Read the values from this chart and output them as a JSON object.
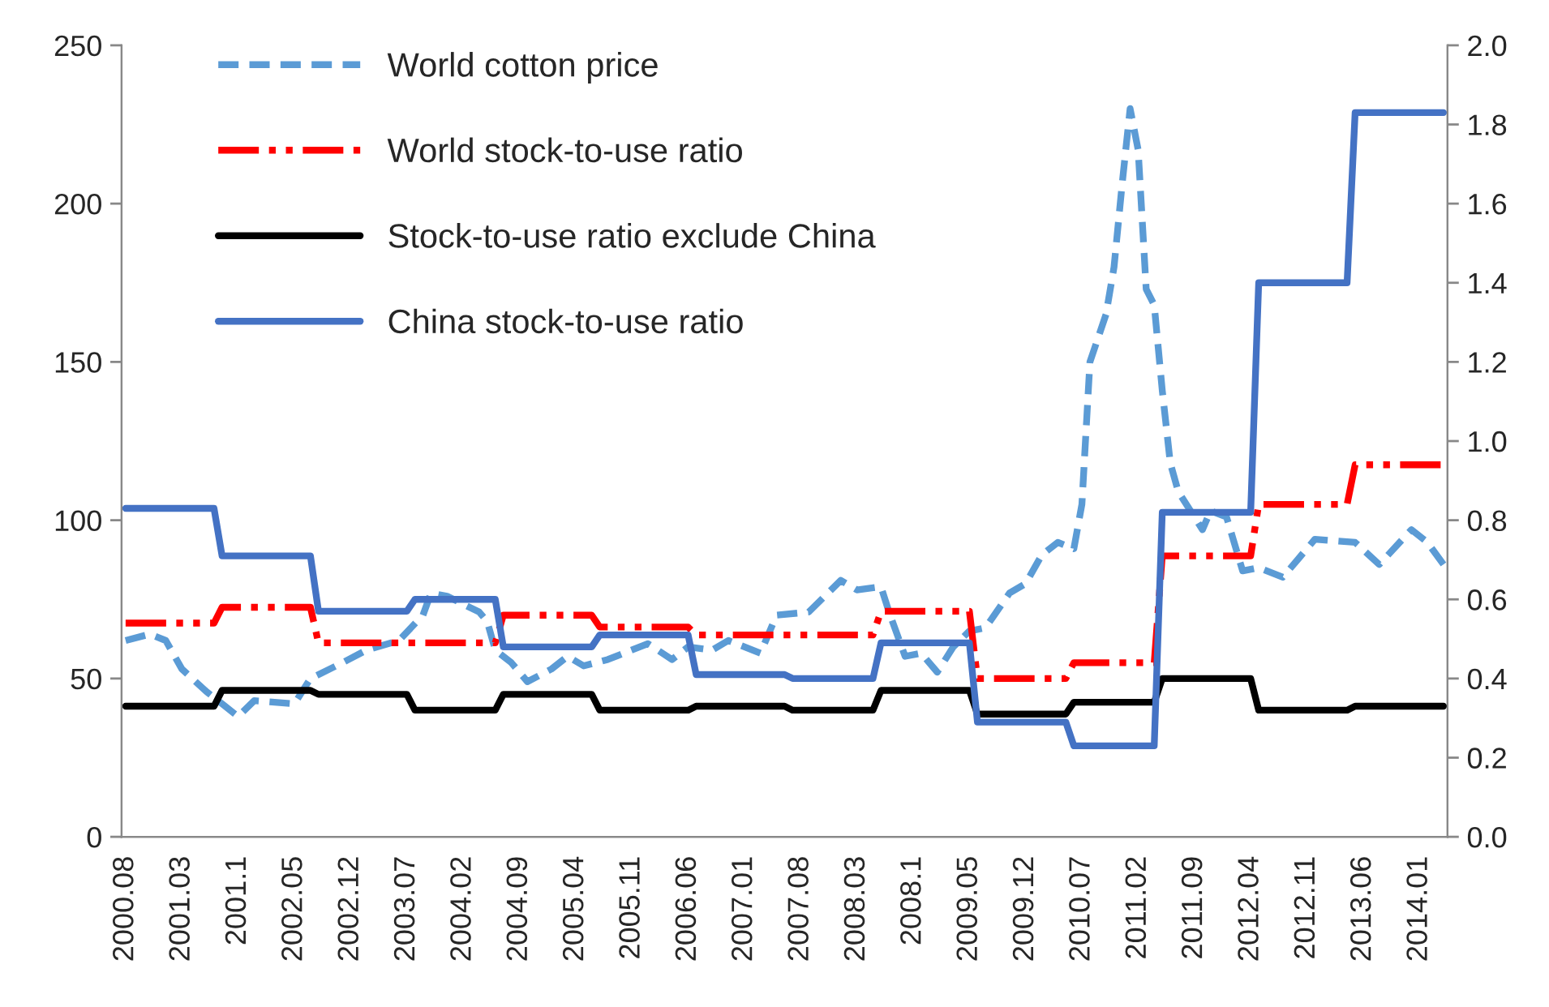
{
  "chart_data": {
    "type": "line",
    "categories": [
      "2000.08",
      null,
      null,
      null,
      null,
      null,
      null,
      "2001.03",
      null,
      null,
      null,
      null,
      null,
      null,
      "2001.1",
      null,
      null,
      null,
      null,
      null,
      null,
      "2002.05",
      null,
      null,
      null,
      null,
      null,
      null,
      "2002.12",
      null,
      null,
      null,
      null,
      null,
      null,
      "2003.07",
      null,
      null,
      null,
      null,
      null,
      null,
      "2004.02",
      null,
      null,
      null,
      null,
      null,
      null,
      "2004.09",
      null,
      null,
      null,
      null,
      null,
      null,
      "2005.04",
      null,
      null,
      null,
      null,
      null,
      null,
      "2005.11",
      null,
      null,
      null,
      null,
      null,
      null,
      "2006.06",
      null,
      null,
      null,
      null,
      null,
      null,
      "2007.01",
      null,
      null,
      null,
      null,
      null,
      null,
      "2007.08",
      null,
      null,
      null,
      null,
      null,
      null,
      "2008.03",
      null,
      null,
      null,
      null,
      null,
      null,
      "2008.1",
      null,
      null,
      null,
      null,
      null,
      null,
      "2009.05",
      null,
      null,
      null,
      null,
      null,
      null,
      "2009.12",
      null,
      null,
      null,
      null,
      null,
      null,
      "2010.07",
      null,
      null,
      null,
      null,
      null,
      null,
      "2011.02",
      null,
      null,
      null,
      null,
      null,
      null,
      "2011.09",
      null,
      null,
      null,
      null,
      null,
      null,
      "2012.04",
      null,
      null,
      null,
      null,
      null,
      null,
      "2012.11",
      null,
      null,
      null,
      null,
      null,
      null,
      "2013.06",
      null,
      null,
      null,
      null,
      null,
      null,
      "2014.01",
      null,
      null,
      null
    ],
    "series": [
      {
        "name": "World cotton price",
        "color": "#5b9bd5",
        "line_style": "dashed",
        "values": [
          62,
          null,
          null,
          64,
          null,
          62,
          null,
          53,
          null,
          null,
          46,
          null,
          42,
          null,
          38,
          null,
          43,
          null,
          null,
          null,
          null,
          42,
          null,
          50,
          null,
          null,
          null,
          55,
          null,
          null,
          59,
          null,
          null,
          null,
          62,
          null,
          null,
          70,
          77,
          null,
          76,
          null,
          null,
          null,
          71,
          68,
          59,
          null,
          55,
          null,
          49,
          null,
          null,
          53,
          null,
          57,
          null,
          54,
          null,
          null,
          56,
          null,
          58,
          null,
          null,
          61,
          null,
          null,
          56,
          null,
          60,
          null,
          null,
          59,
          null,
          62,
          null,
          null,
          null,
          58,
          null,
          70,
          null,
          null,
          null,
          71,
          null,
          76,
          null,
          81,
          null,
          78,
          null,
          null,
          79,
          71,
          null,
          57,
          null,
          58,
          null,
          52,
          null,
          60,
          null,
          65,
          null,
          66,
          null,
          null,
          77,
          null,
          80,
          null,
          89,
          null,
          93,
          null,
          91,
          105,
          150,
          null,
          165,
          180,
          206,
          230,
          217,
          173,
          168,
          141,
          118,
          109,
          null,
          null,
          97,
          103,
          null,
          101,
          null,
          84,
          null,
          85,
          null,
          null,
          82,
          null,
          88,
          null,
          94,
          null,
          null,
          null,
          null,
          93,
          null,
          null,
          86,
          null,
          null,
          null,
          97,
          null,
          93,
          null,
          86
        ]
      },
      {
        "name": "World stock-to-use ratio",
        "color": "#ff0000",
        "line_style": "dashdot",
        "axis": "y2",
        "values": [
          0.54,
          0.54,
          0.54,
          0.54,
          0.54,
          0.54,
          0.54,
          0.54,
          0.54,
          0.54,
          0.54,
          0.54,
          0.58,
          0.58,
          0.58,
          0.58,
          0.58,
          0.58,
          0.58,
          0.58,
          0.58,
          0.58,
          0.58,
          0.58,
          0.49,
          0.49,
          0.49,
          0.49,
          0.49,
          0.49,
          0.49,
          0.49,
          0.49,
          0.49,
          0.49,
          0.49,
          0.49,
          0.49,
          0.49,
          0.49,
          0.49,
          0.49,
          0.49,
          0.49,
          0.49,
          0.49,
          0.49,
          0.56,
          0.56,
          0.56,
          0.56,
          0.56,
          0.56,
          0.56,
          0.56,
          0.56,
          0.56,
          0.56,
          0.56,
          0.53,
          0.53,
          0.53,
          0.53,
          0.53,
          0.53,
          0.53,
          0.53,
          0.53,
          0.53,
          0.53,
          0.53,
          0.51,
          0.51,
          0.51,
          0.51,
          0.51,
          0.51,
          0.51,
          0.51,
          0.51,
          0.51,
          0.51,
          0.51,
          0.51,
          0.51,
          0.51,
          0.51,
          0.51,
          0.51,
          0.51,
          0.51,
          0.51,
          0.51,
          0.51,
          0.57,
          0.57,
          0.57,
          0.57,
          0.57,
          0.57,
          0.57,
          0.57,
          0.57,
          0.57,
          0.57,
          0.57,
          0.4,
          0.4,
          0.4,
          0.4,
          0.4,
          0.4,
          0.4,
          0.4,
          0.4,
          0.4,
          0.4,
          0.4,
          0.44,
          0.44,
          0.44,
          0.44,
          0.44,
          0.44,
          0.44,
          0.44,
          0.44,
          0.44,
          0.44,
          0.71,
          0.71,
          0.71,
          0.71,
          0.71,
          0.71,
          0.71,
          0.71,
          0.71,
          0.71,
          0.71,
          0.71,
          0.84,
          0.84,
          0.84,
          0.84,
          0.84,
          0.84,
          0.84,
          0.84,
          0.84,
          0.84,
          0.84,
          0.84,
          0.94,
          0.94,
          0.94,
          0.94,
          0.94,
          0.94,
          0.94,
          0.94,
          0.94,
          0.94,
          0.94,
          0.94
        ]
      },
      {
        "name": "Stock-to-use ratio exclude China",
        "color": "#000000",
        "line_style": "solid",
        "axis": "y2",
        "values": [
          0.33,
          0.33,
          0.33,
          0.33,
          0.33,
          0.33,
          0.33,
          0.33,
          0.33,
          0.33,
          0.33,
          0.33,
          0.37,
          0.37,
          0.37,
          0.37,
          0.37,
          0.37,
          0.37,
          0.37,
          0.37,
          0.37,
          0.37,
          0.37,
          0.36,
          0.36,
          0.36,
          0.36,
          0.36,
          0.36,
          0.36,
          0.36,
          0.36,
          0.36,
          0.36,
          0.36,
          0.32,
          0.32,
          0.32,
          0.32,
          0.32,
          0.32,
          0.32,
          0.32,
          0.32,
          0.32,
          0.32,
          0.36,
          0.36,
          0.36,
          0.36,
          0.36,
          0.36,
          0.36,
          0.36,
          0.36,
          0.36,
          0.36,
          0.36,
          0.32,
          0.32,
          0.32,
          0.32,
          0.32,
          0.32,
          0.32,
          0.32,
          0.32,
          0.32,
          0.32,
          0.32,
          0.33,
          0.33,
          0.33,
          0.33,
          0.33,
          0.33,
          0.33,
          0.33,
          0.33,
          0.33,
          0.33,
          0.33,
          0.32,
          0.32,
          0.32,
          0.32,
          0.32,
          0.32,
          0.32,
          0.32,
          0.32,
          0.32,
          0.32,
          0.37,
          0.37,
          0.37,
          0.37,
          0.37,
          0.37,
          0.37,
          0.37,
          0.37,
          0.37,
          0.37,
          0.37,
          0.31,
          0.31,
          0.31,
          0.31,
          0.31,
          0.31,
          0.31,
          0.31,
          0.31,
          0.31,
          0.31,
          0.31,
          0.34,
          0.34,
          0.34,
          0.34,
          0.34,
          0.34,
          0.34,
          0.34,
          0.34,
          0.34,
          0.34,
          0.4,
          0.4,
          0.4,
          0.4,
          0.4,
          0.4,
          0.4,
          0.4,
          0.4,
          0.4,
          0.4,
          0.4,
          0.32,
          0.32,
          0.32,
          0.32,
          0.32,
          0.32,
          0.32,
          0.32,
          0.32,
          0.32,
          0.32,
          0.32,
          0.33,
          0.33,
          0.33,
          0.33,
          0.33,
          0.33,
          0.33,
          0.33,
          0.33,
          0.33,
          0.33,
          0.33
        ]
      },
      {
        "name": "China stock-to-use ratio",
        "color": "#4472c4",
        "line_style": "solid",
        "axis": "y2",
        "values": [
          0.83,
          0.83,
          0.83,
          0.83,
          0.83,
          0.83,
          0.83,
          0.83,
          0.83,
          0.83,
          0.83,
          0.83,
          0.71,
          0.71,
          0.71,
          0.71,
          0.71,
          0.71,
          0.71,
          0.71,
          0.71,
          0.71,
          0.71,
          0.71,
          0.57,
          0.57,
          0.57,
          0.57,
          0.57,
          0.57,
          0.57,
          0.57,
          0.57,
          0.57,
          0.57,
          0.57,
          0.6,
          0.6,
          0.6,
          0.6,
          0.6,
          0.6,
          0.6,
          0.6,
          0.6,
          0.6,
          0.6,
          0.48,
          0.48,
          0.48,
          0.48,
          0.48,
          0.48,
          0.48,
          0.48,
          0.48,
          0.48,
          0.48,
          0.48,
          0.51,
          0.51,
          0.51,
          0.51,
          0.51,
          0.51,
          0.51,
          0.51,
          0.51,
          0.51,
          0.51,
          0.51,
          0.41,
          0.41,
          0.41,
          0.41,
          0.41,
          0.41,
          0.41,
          0.41,
          0.41,
          0.41,
          0.41,
          0.41,
          0.4,
          0.4,
          0.4,
          0.4,
          0.4,
          0.4,
          0.4,
          0.4,
          0.4,
          0.4,
          0.4,
          0.49,
          0.49,
          0.49,
          0.49,
          0.49,
          0.49,
          0.49,
          0.49,
          0.49,
          0.49,
          0.49,
          0.49,
          0.29,
          0.29,
          0.29,
          0.29,
          0.29,
          0.29,
          0.29,
          0.29,
          0.29,
          0.29,
          0.29,
          0.29,
          0.23,
          0.23,
          0.23,
          0.23,
          0.23,
          0.23,
          0.23,
          0.23,
          0.23,
          0.23,
          0.23,
          0.82,
          0.82,
          0.82,
          0.82,
          0.82,
          0.82,
          0.82,
          0.82,
          0.82,
          0.82,
          0.82,
          0.82,
          1.4,
          1.4,
          1.4,
          1.4,
          1.4,
          1.4,
          1.4,
          1.4,
          1.4,
          1.4,
          1.4,
          1.4,
          1.83,
          1.83,
          1.83,
          1.83,
          1.83,
          1.83,
          1.83,
          1.83,
          1.83,
          1.83,
          1.83,
          1.83
        ]
      }
    ],
    "ylim": [
      0,
      250
    ],
    "yticks": [
      0,
      50,
      100,
      150,
      200,
      250
    ],
    "y2lim": [
      0,
      2
    ],
    "y2ticks": [
      {
        "value": 0,
        "label": "0.0"
      },
      0.2,
      0.4,
      0.6,
      0.8,
      {
        "value": 1,
        "label": "1.0"
      },
      1.2,
      1.4,
      1.6,
      1.8,
      {
        "value": 2,
        "label": "2.0"
      }
    ],
    "legend": "top left"
  }
}
